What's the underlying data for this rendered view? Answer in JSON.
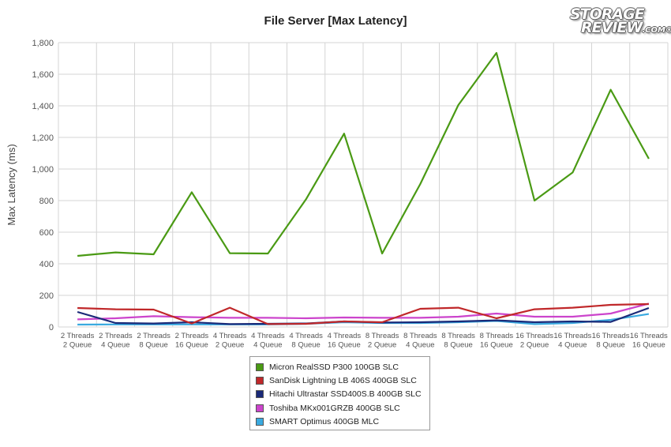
{
  "chart_data": {
    "type": "line",
    "title": "File Server [Max Latency]",
    "ylabel": "Max Latency (ms)",
    "xlabel": "",
    "ylim": [
      0,
      1800
    ],
    "yticks": [
      "0",
      "200",
      "400",
      "600",
      "800",
      "1,000",
      "1,200",
      "1,400",
      "1,600",
      "1,800"
    ],
    "categories": [
      [
        "2 Threads",
        "2 Queue"
      ],
      [
        "2 Threads",
        "4 Queue"
      ],
      [
        "2 Threads",
        "8 Queue"
      ],
      [
        "2 Threads",
        "16 Queue"
      ],
      [
        "4 Threads",
        "2 Queue"
      ],
      [
        "4 Threads",
        "4 Queue"
      ],
      [
        "4 Threads",
        "8 Queue"
      ],
      [
        "4 Threads",
        "16 Queue"
      ],
      [
        "8 Threads",
        "2 Queue"
      ],
      [
        "8 Threads",
        "4 Queue"
      ],
      [
        "8 Threads",
        "8 Queue"
      ],
      [
        "8 Threads",
        "16 Queue"
      ],
      [
        "16 Threads",
        "2 Queue"
      ],
      [
        "16 Threads",
        "4 Queue"
      ],
      [
        "16 Threads",
        "8 Queue"
      ],
      [
        "16 Threads",
        "16 Queue"
      ]
    ],
    "grid": true,
    "legend_position": "bottom-center",
    "series": [
      {
        "name": "Micron RealSSD P300 100GB SLC",
        "color": "#4a9a14",
        "values": [
          450,
          472,
          460,
          853,
          467,
          465,
          808,
          1224,
          465,
          905,
          1405,
          1735,
          800,
          978,
          1502,
          1065
        ]
      },
      {
        "name": "SanDisk Lightning LB 406S 400GB SLC",
        "color": "#c0282a",
        "values": [
          120,
          112,
          110,
          22,
          122,
          18,
          20,
          35,
          30,
          115,
          122,
          55,
          112,
          122,
          140,
          145
        ]
      },
      {
        "name": "Hitachi Ultrastar SSD400S.B 400GB SLC",
        "color": "#1a2a78",
        "values": [
          95,
          25,
          22,
          30,
          18,
          20,
          22,
          35,
          28,
          30,
          35,
          42,
          30,
          35,
          32,
          120
        ]
      },
      {
        "name": "Toshiba MKx001GRZB 400GB SLC",
        "color": "#cc44cc",
        "values": [
          48,
          55,
          68,
          62,
          58,
          58,
          55,
          60,
          58,
          58,
          65,
          85,
          65,
          65,
          85,
          148
        ]
      },
      {
        "name": "SMART Optimus 400GB MLC",
        "color": "#3aaae0",
        "values": [
          15,
          16,
          16,
          16,
          16,
          16,
          20,
          30,
          25,
          25,
          30,
          38,
          18,
          25,
          45,
          82
        ]
      }
    ]
  },
  "branding": {
    "logo_line1": "STORAGE",
    "logo_line2": "REVIEW",
    "logo_suffix": ".COM",
    "logo_mark": "®"
  }
}
